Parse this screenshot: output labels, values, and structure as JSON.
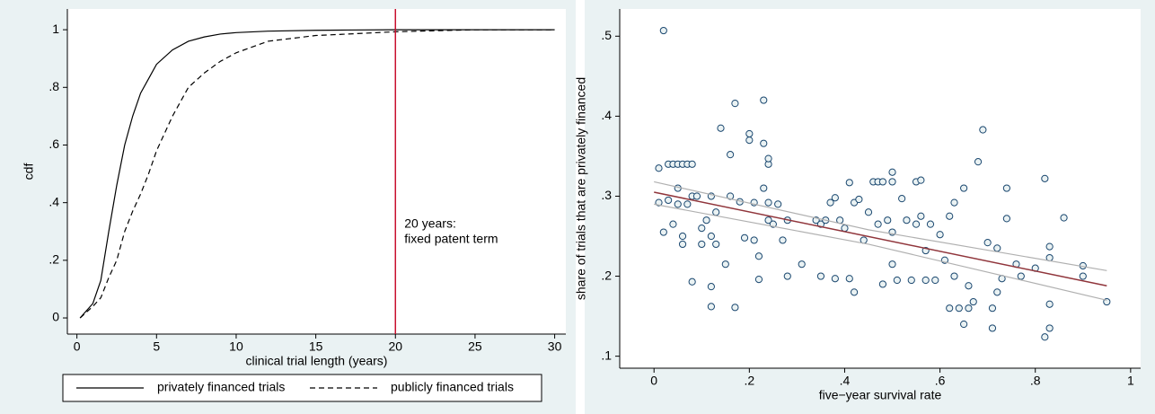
{
  "chart_data": [
    {
      "type": "line",
      "xlabel": "clinical trial length (years)",
      "ylabel": "cdf",
      "xlim": [
        -0.6,
        30.7
      ],
      "ylim": [
        -0.056,
        1.072
      ],
      "xticks": [
        0,
        5,
        10,
        15,
        20,
        25,
        30
      ],
      "yticks": [
        0,
        {
          "value": 0.2,
          "label": ".2"
        },
        {
          "value": 0.4,
          "label": ".4"
        },
        {
          "value": 0.6,
          "label": ".6"
        },
        {
          "value": 0.8,
          "label": ".8"
        },
        1
      ],
      "x": [
        0.2,
        1,
        1.5,
        2,
        2.5,
        3,
        3.5,
        4,
        4.5,
        5,
        6,
        7,
        8,
        9,
        10,
        12,
        15,
        17,
        20,
        25,
        30
      ],
      "series": [
        {
          "name": "privately financed trials",
          "color": "#000000",
          "line_style": "solid",
          "values": [
            0,
            0.05,
            0.13,
            0.3,
            0.46,
            0.6,
            0.7,
            0.78,
            0.83,
            0.88,
            0.93,
            0.96,
            0.975,
            0.985,
            0.99,
            0.995,
            0.998,
            0.999,
            1,
            1,
            1
          ]
        },
        {
          "name": "publicly financed trials",
          "color": "#000000",
          "line_style": "dashed",
          "values": [
            0,
            0.04,
            0.07,
            0.14,
            0.2,
            0.3,
            0.37,
            0.43,
            0.5,
            0.58,
            0.7,
            0.8,
            0.85,
            0.89,
            0.92,
            0.96,
            0.98,
            0.985,
            0.993,
            1,
            1
          ]
        }
      ],
      "annotation": {
        "x": 20,
        "lines": [
          "20 years:",
          "fixed patent term"
        ],
        "color": "#c8102e"
      }
    },
    {
      "type": "scatter",
      "xlabel": "five−year survival rate",
      "ylabel": "share of trials that are privately financed",
      "xlim": [
        -0.072,
        1.021
      ],
      "ylim": [
        0.085,
        0.534
      ],
      "xticks": [
        0,
        {
          "value": 0.2,
          "label": ".2"
        },
        {
          "value": 0.4,
          "label": ".4"
        },
        {
          "value": 0.6,
          "label": ".6"
        },
        {
          "value": 0.8,
          "label": ".8"
        },
        1
      ],
      "yticks": [
        {
          "value": 0.1,
          "label": ".1"
        },
        {
          "value": 0.2,
          "label": ".2"
        },
        {
          "value": 0.3,
          "label": ".3"
        },
        {
          "value": 0.4,
          "label": ".4"
        },
        {
          "value": 0.5,
          "label": ".5"
        }
      ],
      "points": {
        "color": "#1a476f",
        "x": [
          0.02,
          0.01,
          0.03,
          0.04,
          0.05,
          0.06,
          0.07,
          0.08,
          0.01,
          0.02,
          0.03,
          0.04,
          0.05,
          0.05,
          0.06,
          0.06,
          0.07,
          0.08,
          0.09,
          0.08,
          0.1,
          0.1,
          0.11,
          0.12,
          0.12,
          0.13,
          0.13,
          0.12,
          0.12,
          0.14,
          0.15,
          0.16,
          0.16,
          0.17,
          0.17,
          0.18,
          0.19,
          0.2,
          0.2,
          0.21,
          0.21,
          0.22,
          0.22,
          0.23,
          0.23,
          0.23,
          0.24,
          0.24,
          0.24,
          0.24,
          0.25,
          0.26,
          0.27,
          0.28,
          0.28,
          0.31,
          0.34,
          0.35,
          0.35,
          0.36,
          0.37,
          0.38,
          0.38,
          0.39,
          0.4,
          0.41,
          0.41,
          0.42,
          0.42,
          0.43,
          0.44,
          0.45,
          0.46,
          0.47,
          0.47,
          0.48,
          0.48,
          0.49,
          0.5,
          0.5,
          0.5,
          0.5,
          0.51,
          0.52,
          0.53,
          0.54,
          0.55,
          0.55,
          0.56,
          0.56,
          0.57,
          0.57,
          0.58,
          0.59,
          0.6,
          0.61,
          0.62,
          0.62,
          0.63,
          0.63,
          0.64,
          0.65,
          0.65,
          0.66,
          0.66,
          0.67,
          0.68,
          0.69,
          0.7,
          0.71,
          0.71,
          0.72,
          0.72,
          0.73,
          0.74,
          0.74,
          0.76,
          0.77,
          0.8,
          0.82,
          0.82,
          0.83,
          0.83,
          0.83,
          0.83,
          0.86,
          0.9,
          0.9,
          0.95
        ],
        "values": [
          0.507,
          0.335,
          0.34,
          0.34,
          0.34,
          0.34,
          0.34,
          0.34,
          0.292,
          0.255,
          0.295,
          0.265,
          0.29,
          0.31,
          0.25,
          0.24,
          0.29,
          0.3,
          0.3,
          0.193,
          0.24,
          0.26,
          0.27,
          0.3,
          0.25,
          0.28,
          0.24,
          0.162,
          0.187,
          0.385,
          0.215,
          0.352,
          0.3,
          0.416,
          0.161,
          0.293,
          0.248,
          0.37,
          0.378,
          0.292,
          0.245,
          0.225,
          0.196,
          0.42,
          0.366,
          0.31,
          0.34,
          0.347,
          0.292,
          0.27,
          0.265,
          0.29,
          0.245,
          0.27,
          0.2,
          0.215,
          0.27,
          0.265,
          0.2,
          0.27,
          0.292,
          0.298,
          0.197,
          0.27,
          0.26,
          0.317,
          0.197,
          0.292,
          0.18,
          0.296,
          0.245,
          0.28,
          0.318,
          0.318,
          0.265,
          0.318,
          0.19,
          0.27,
          0.33,
          0.318,
          0.255,
          0.215,
          0.195,
          0.297,
          0.27,
          0.195,
          0.318,
          0.265,
          0.32,
          0.275,
          0.232,
          0.195,
          0.265,
          0.195,
          0.252,
          0.22,
          0.16,
          0.275,
          0.292,
          0.2,
          0.16,
          0.31,
          0.14,
          0.16,
          0.188,
          0.168,
          0.343,
          0.383,
          0.242,
          0.135,
          0.16,
          0.18,
          0.235,
          0.197,
          0.31,
          0.272,
          0.215,
          0.2,
          0.21,
          0.322,
          0.124,
          0.237,
          0.223,
          0.165,
          0.135,
          0.273,
          0.213,
          0.2,
          0.168
        ]
      },
      "fit_line": {
        "color": "#90353b",
        "x": [
          0,
          0.95
        ],
        "values": [
          0.305,
          0.188
        ]
      },
      "ci_upper": {
        "color": "#b0b0b0",
        "x": [
          0,
          0.45,
          0.95
        ],
        "values": [
          0.318,
          0.258,
          0.207
        ]
      },
      "ci_lower": {
        "color": "#b0b0b0",
        "x": [
          0,
          0.45,
          0.95
        ],
        "values": [
          0.29,
          0.24,
          0.17
        ]
      }
    }
  ]
}
